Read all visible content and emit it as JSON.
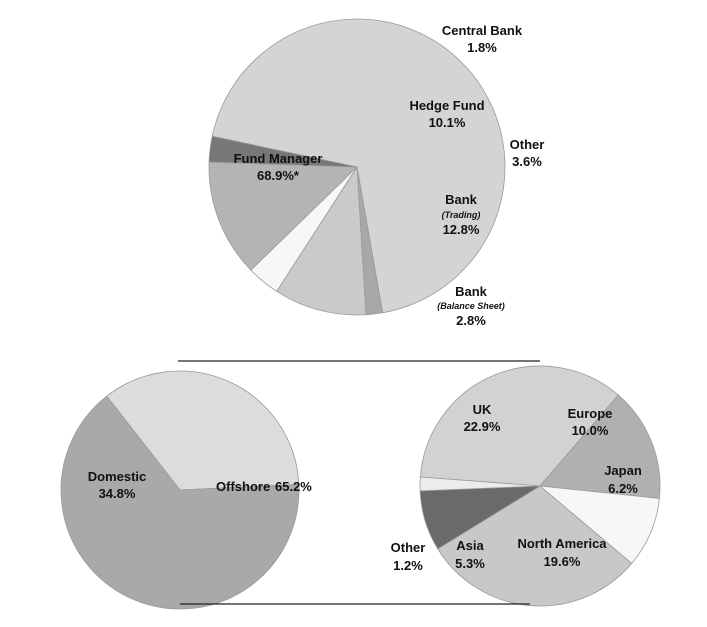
{
  "chart_data": [
    {
      "type": "pie",
      "title": "",
      "slices": [
        {
          "label": "Fund Manager",
          "sublabel": "",
          "value": 68.9,
          "value_text": "68.9%*",
          "color": "#d4d4d4"
        },
        {
          "label": "Central Bank",
          "sublabel": "",
          "value": 1.8,
          "value_text": "1.8%",
          "color": "#a8a8a8"
        },
        {
          "label": "Hedge Fund",
          "sublabel": "",
          "value": 10.1,
          "value_text": "10.1%",
          "color": "#cacaca"
        },
        {
          "label": "Other",
          "sublabel": "",
          "value": 3.6,
          "value_text": "3.6%",
          "color": "#f7f7f7"
        },
        {
          "label": "Bank",
          "sublabel": "(Trading)",
          "value": 12.8,
          "value_text": "12.8%",
          "color": "#b4b4b4"
        },
        {
          "label": "Bank",
          "sublabel": "(Balance Sheet)",
          "value": 2.8,
          "value_text": "2.8%",
          "color": "#777777"
        }
      ]
    },
    {
      "type": "pie",
      "title": "",
      "slices": [
        {
          "label": "Domestic",
          "value": 34.8,
          "value_text": "34.8%",
          "color": "#dcdcdc"
        },
        {
          "label": "Offshore",
          "value": 65.2,
          "value_text": "65.2%",
          "color": "#a9a9a9"
        }
      ]
    },
    {
      "type": "pie",
      "title": "",
      "slices": [
        {
          "label": "UK",
          "value": 22.9,
          "value_text": "22.9%",
          "color": "#d2d2d2"
        },
        {
          "label": "Europe",
          "value": 10.0,
          "value_text": "10.0%",
          "color": "#b0b0b0"
        },
        {
          "label": "Japan",
          "value": 6.2,
          "value_text": "6.2%",
          "color": "#f7f7f7"
        },
        {
          "label": "North America",
          "value": 19.6,
          "value_text": "19.6%",
          "color": "#c8c8c8"
        },
        {
          "label": "Asia",
          "value": 5.3,
          "value_text": "5.3%",
          "color": "#6a6a6a"
        },
        {
          "label": "Other",
          "value": 1.2,
          "value_text": "1.2%",
          "color": "#ececec"
        }
      ]
    }
  ]
}
